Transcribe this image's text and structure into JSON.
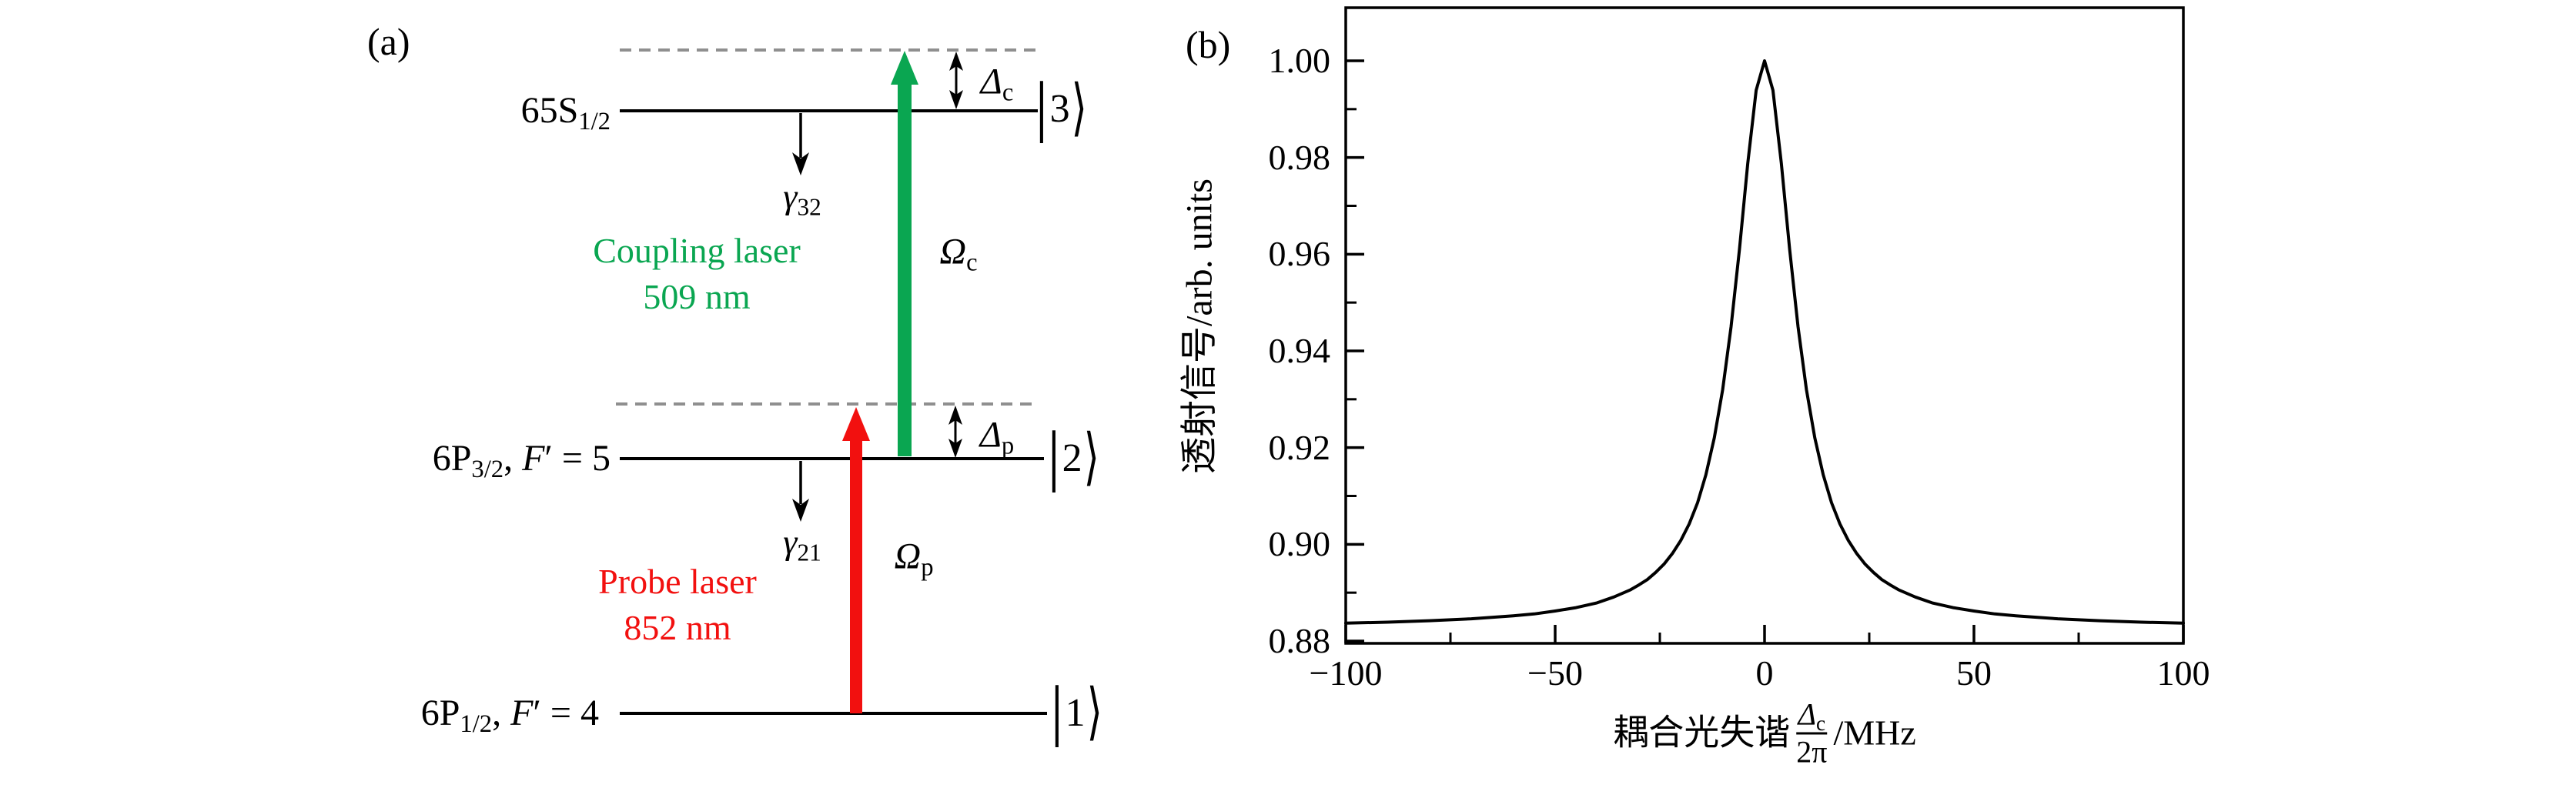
{
  "colors": {
    "coupling_green": "#0aa651",
    "probe_red": "#f2100f",
    "dashed_gray": "#8f8f8f",
    "axis_black": "#000000"
  },
  "panel_a": {
    "label": "(a)",
    "level3": {
      "term": "65S",
      "sub": "1/2",
      "ket": "3"
    },
    "level2": {
      "term": "6P",
      "sub": "3/2",
      "sep": ", ",
      "f_sym": "F",
      "prime": "′",
      "eq": " = 5",
      "ket": "2"
    },
    "level1": {
      "term": "6P",
      "sub": "1/2",
      "sep": ", ",
      "f_sym": "F",
      "prime": "′",
      "eq": " = 4",
      "ket": "1"
    },
    "gamma32": {
      "sym": "γ",
      "sub": "32"
    },
    "gamma21": {
      "sym": "γ",
      "sub": "21"
    },
    "delta_c": {
      "sym": "Δ",
      "sub": "c"
    },
    "delta_p": {
      "sym": "Δ",
      "sub": "p"
    },
    "omega_c": {
      "sym": "Ω",
      "sub": "c"
    },
    "omega_p": {
      "sym": "Ω",
      "sub": "p"
    },
    "coupling_laser": {
      "line1": "Coupling laser",
      "line2": "509 nm"
    },
    "probe_laser": {
      "line1": "Probe laser",
      "line2": "852 nm"
    },
    "ket_bar": "|",
    "ket_rangle": "⟩"
  },
  "panel_b": {
    "label": "(b)",
    "ylabel": "透射信号/arb. units",
    "xlabel": {
      "prefix": "耦合光失谐",
      "frac_num_sym": "Δ",
      "frac_num_sub": "c",
      "frac_den": "2π",
      "suffix": "/MHz"
    }
  },
  "chart_data": {
    "type": "line",
    "title": "",
    "xlabel": "耦合光失谐 (Δc/2π)/MHz",
    "ylabel": "透射信号/arb. units",
    "xlim": [
      -100,
      100
    ],
    "ylim": [
      0.8795,
      1.011
    ],
    "x_major_ticks": [
      -100,
      -50,
      0,
      50,
      100
    ],
    "x_tick_labels": [
      "−100",
      "−50",
      "0",
      "50",
      "100"
    ],
    "x_minor_ticks": [
      -75,
      -25,
      25,
      75
    ],
    "y_major_ticks": [
      1.0,
      0.98,
      0.96,
      0.94,
      0.92,
      0.9,
      0.88
    ],
    "y_tick_labels": [
      "1.00",
      "0.98",
      "0.96",
      "0.94",
      "0.92",
      "0.90",
      "0.88"
    ],
    "y_minor_ticks": [
      0.99,
      0.97,
      0.95,
      0.93,
      0.91,
      0.89
    ],
    "grid": false,
    "legend": null,
    "line_color": "#000000",
    "peak": {
      "center_mhz": 0,
      "peak_value": 1.0,
      "baseline": 0.884,
      "fwhm_mhz": 17
    },
    "points": [
      [
        -100,
        0.8837
      ],
      [
        -90,
        0.8839
      ],
      [
        -80,
        0.8842
      ],
      [
        -70,
        0.8846
      ],
      [
        -60,
        0.8852
      ],
      [
        -55,
        0.8856
      ],
      [
        -50,
        0.8862
      ],
      [
        -45,
        0.8869
      ],
      [
        -40,
        0.8879
      ],
      [
        -36,
        0.8891
      ],
      [
        -32,
        0.8906
      ],
      [
        -30,
        0.8916
      ],
      [
        -28,
        0.8927
      ],
      [
        -26,
        0.8942
      ],
      [
        -24,
        0.8959
      ],
      [
        -22,
        0.8981
      ],
      [
        -20,
        0.9008
      ],
      [
        -18,
        0.9042
      ],
      [
        -16,
        0.9086
      ],
      [
        -14,
        0.9144
      ],
      [
        -12,
        0.922
      ],
      [
        -10,
        0.932
      ],
      [
        -8,
        0.945
      ],
      [
        -6,
        0.961
      ],
      [
        -4,
        0.9788
      ],
      [
        -2,
        0.9939
      ],
      [
        0,
        1.0
      ],
      [
        2,
        0.9939
      ],
      [
        4,
        0.9788
      ],
      [
        6,
        0.961
      ],
      [
        8,
        0.945
      ],
      [
        10,
        0.932
      ],
      [
        12,
        0.922
      ],
      [
        14,
        0.9144
      ],
      [
        16,
        0.9086
      ],
      [
        18,
        0.9042
      ],
      [
        20,
        0.9008
      ],
      [
        22,
        0.8981
      ],
      [
        24,
        0.8959
      ],
      [
        26,
        0.8942
      ],
      [
        28,
        0.8927
      ],
      [
        30,
        0.8916
      ],
      [
        32,
        0.8906
      ],
      [
        36,
        0.8891
      ],
      [
        40,
        0.8879
      ],
      [
        45,
        0.8869
      ],
      [
        50,
        0.8862
      ],
      [
        55,
        0.8856
      ],
      [
        60,
        0.8852
      ],
      [
        70,
        0.8846
      ],
      [
        80,
        0.8842
      ],
      [
        90,
        0.8839
      ],
      [
        100,
        0.8837
      ]
    ]
  }
}
